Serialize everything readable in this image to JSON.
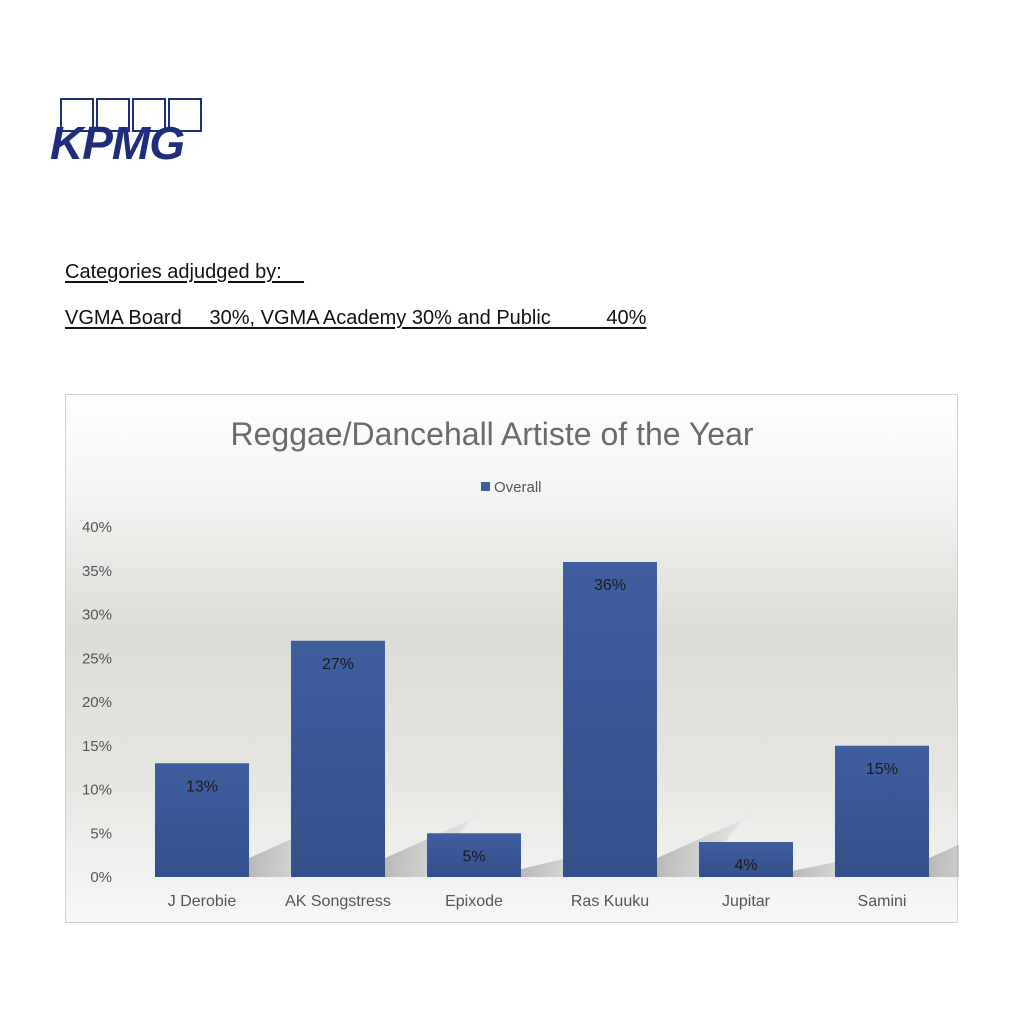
{
  "logo": {
    "text": "KPMG"
  },
  "header": {
    "line1": "Categories adjudged by:    ",
    "line2": "VGMA Board     30%, VGMA Academy 30% and Public          40%"
  },
  "colors": {
    "bar": "#3e5e9e",
    "logo": "#1f2d7a",
    "title": "#6b6b6b",
    "axis_text": "#555555"
  },
  "chart_data": {
    "type": "bar",
    "title": "Reggae/Dancehall Artiste of the Year",
    "categories": [
      "J Derobie",
      "AK Songstress",
      "Epixode",
      "Ras Kuuku",
      "Jupitar",
      "Samini"
    ],
    "series": [
      {
        "name": "Overall",
        "values": [
          13,
          27,
          5,
          36,
          4,
          15
        ]
      }
    ],
    "data_labels": [
      "13%",
      "27%",
      "5%",
      "36%",
      "4%",
      "15%"
    ],
    "ylim": [
      0,
      40
    ],
    "yticks": [
      "0%",
      "5%",
      "10%",
      "15%",
      "20%",
      "25%",
      "30%",
      "35%",
      "40%"
    ],
    "ytick_values": [
      0,
      5,
      10,
      15,
      20,
      25,
      30,
      35,
      40
    ],
    "legend_position": "top-center",
    "grid": false,
    "xlabel": "",
    "ylabel": ""
  }
}
